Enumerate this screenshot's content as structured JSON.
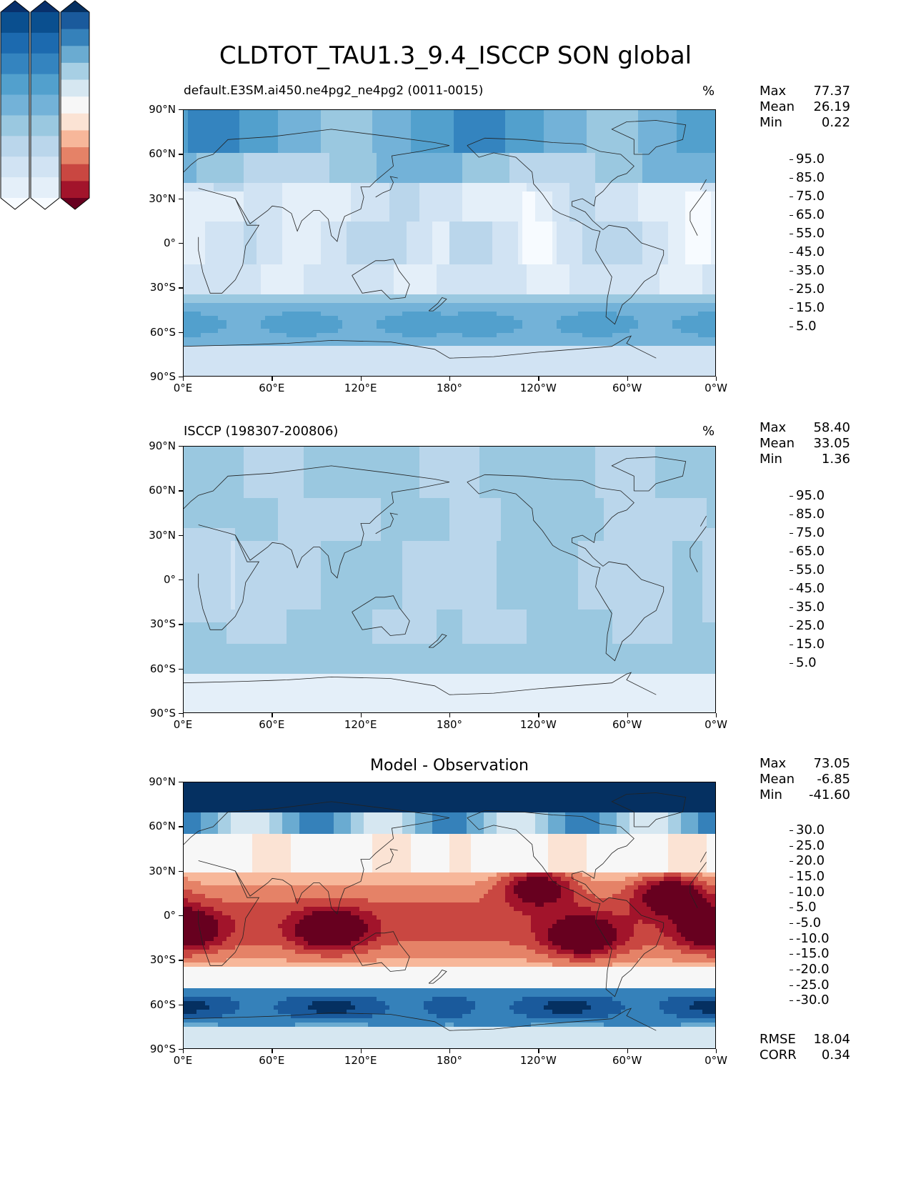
{
  "title": "CLDTOT_TAU1.3_9.4_ISCCP SON global",
  "axes": {
    "lat_ticks": [
      "90°N",
      "60°N",
      "30°N",
      "0°",
      "30°S",
      "60°S",
      "90°S"
    ],
    "lon_ticks": [
      "0°E",
      "60°E",
      "120°E",
      "180°",
      "120°W",
      "60°W",
      "0°W"
    ]
  },
  "panels": [
    {
      "label": "default.E3SM.ai450.ne4pg2_ne4pg2 (0011-0015)",
      "units": "%",
      "stats": [
        {
          "name": "Max",
          "value": "77.37"
        },
        {
          "name": "Mean",
          "value": "26.19"
        },
        {
          "name": "Min",
          "value": "0.22"
        }
      ],
      "colorbar_ticks": [
        "95.0",
        "85.0",
        "75.0",
        "65.0",
        "55.0",
        "45.0",
        "35.0",
        "25.0",
        "15.0",
        "5.0"
      ]
    },
    {
      "label": "ISCCP (198307-200806)",
      "units": "%",
      "stats": [
        {
          "name": "Max",
          "value": "58.40"
        },
        {
          "name": "Mean",
          "value": "33.05"
        },
        {
          "name": "Min",
          "value": "1.36"
        }
      ],
      "colorbar_ticks": [
        "95.0",
        "85.0",
        "75.0",
        "65.0",
        "55.0",
        "45.0",
        "35.0",
        "25.0",
        "15.0",
        "5.0"
      ]
    },
    {
      "label": "Model - Observation",
      "units": "",
      "stats": [
        {
          "name": "Max",
          "value": "73.05"
        },
        {
          "name": "Mean",
          "value": "-6.85"
        },
        {
          "name": "Min",
          "value": "-41.60"
        }
      ],
      "colorbar_ticks": [
        "30.0",
        "25.0",
        "20.0",
        "15.0",
        "10.0",
        "5.0",
        "-5.0",
        "-10.0",
        "-15.0",
        "-20.0",
        "-25.0",
        "-30.0"
      ],
      "metrics": [
        {
          "name": "RMSE",
          "value": "18.04"
        },
        {
          "name": "CORR",
          "value": "0.34"
        }
      ]
    }
  ],
  "colors": {
    "blues": [
      "#f7fbff",
      "#e4eff9",
      "#d1e3f3",
      "#bad6eb",
      "#9ac8e0",
      "#73b2d8",
      "#52a0cd",
      "#3484bf",
      "#1c6aaf",
      "#0a4f8f",
      "#08306b"
    ],
    "diff": [
      "#67001f",
      "#a2142b",
      "#c94741",
      "#e58267",
      "#f7b79a",
      "#fbe3d4",
      "#f7f7f7",
      "#d6e7f1",
      "#a7cfe4",
      "#6aabd1",
      "#3581ba",
      "#1a5a9c",
      "#053061"
    ]
  }
}
